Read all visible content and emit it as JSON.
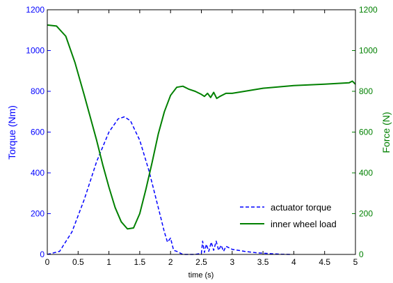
{
  "colors": {
    "left_axis": "#0000ff",
    "right_axis": "#008000",
    "torque_line": "#0000ff",
    "load_line": "#008000",
    "frame": "#000000"
  },
  "chart_data": {
    "type": "line",
    "title": "",
    "xlabel": "time (s)",
    "ylabel": "Torque (Nm)",
    "ylabel_right": "Force (N)",
    "xlim": [
      0,
      5
    ],
    "ylim": [
      0,
      1200
    ],
    "ylim_right": [
      0,
      1200
    ],
    "x_ticks": [
      "0",
      "0.5",
      "1",
      "1.5",
      "2",
      "2.5",
      "3",
      "3.5",
      "4",
      "4.5",
      "5"
    ],
    "y_ticks": [
      "0",
      "200",
      "400",
      "600",
      "800",
      "1000",
      "1200"
    ],
    "y_ticks_right": [
      "0",
      "200",
      "400",
      "600",
      "800",
      "1000",
      "1200"
    ],
    "grid": false,
    "legend_position": "bottom-right",
    "series": [
      {
        "name": "actuator torque",
        "axis": "left",
        "style": "dashed",
        "x": [
          0,
          0.2,
          0.4,
          0.6,
          0.8,
          1.0,
          1.15,
          1.25,
          1.35,
          1.5,
          1.65,
          1.8,
          1.9,
          1.95,
          2.0,
          2.05,
          2.1,
          2.2,
          2.4,
          2.5,
          2.52,
          2.55,
          2.58,
          2.62,
          2.66,
          2.7,
          2.74,
          2.78,
          2.82,
          2.86,
          2.9,
          3.0,
          3.2,
          3.4,
          3.6,
          3.8,
          3.95
        ],
        "values": [
          0,
          15,
          110,
          270,
          455,
          600,
          665,
          675,
          655,
          560,
          410,
          230,
          110,
          60,
          80,
          20,
          15,
          0,
          0,
          5,
          65,
          10,
          50,
          15,
          60,
          20,
          65,
          20,
          45,
          15,
          40,
          25,
          15,
          8,
          4,
          1,
          0
        ]
      },
      {
        "name": "inner wheel load",
        "axis": "right",
        "style": "solid",
        "x": [
          0,
          0.15,
          0.3,
          0.45,
          0.6,
          0.8,
          0.9,
          1.0,
          1.1,
          1.2,
          1.3,
          1.4,
          1.5,
          1.6,
          1.7,
          1.8,
          1.9,
          2.0,
          2.1,
          2.2,
          2.3,
          2.4,
          2.5,
          2.55,
          2.6,
          2.65,
          2.7,
          2.75,
          2.8,
          2.9,
          3.0,
          3.2,
          3.5,
          4.0,
          4.5,
          4.9,
          4.95,
          5.0
        ],
        "values": [
          1125,
          1120,
          1070,
          940,
          780,
          560,
          440,
          330,
          230,
          160,
          125,
          130,
          200,
          320,
          450,
          590,
          700,
          780,
          820,
          825,
          810,
          800,
          785,
          775,
          790,
          770,
          795,
          765,
          775,
          790,
          790,
          800,
          815,
          828,
          835,
          842,
          850,
          835
        ]
      }
    ]
  }
}
